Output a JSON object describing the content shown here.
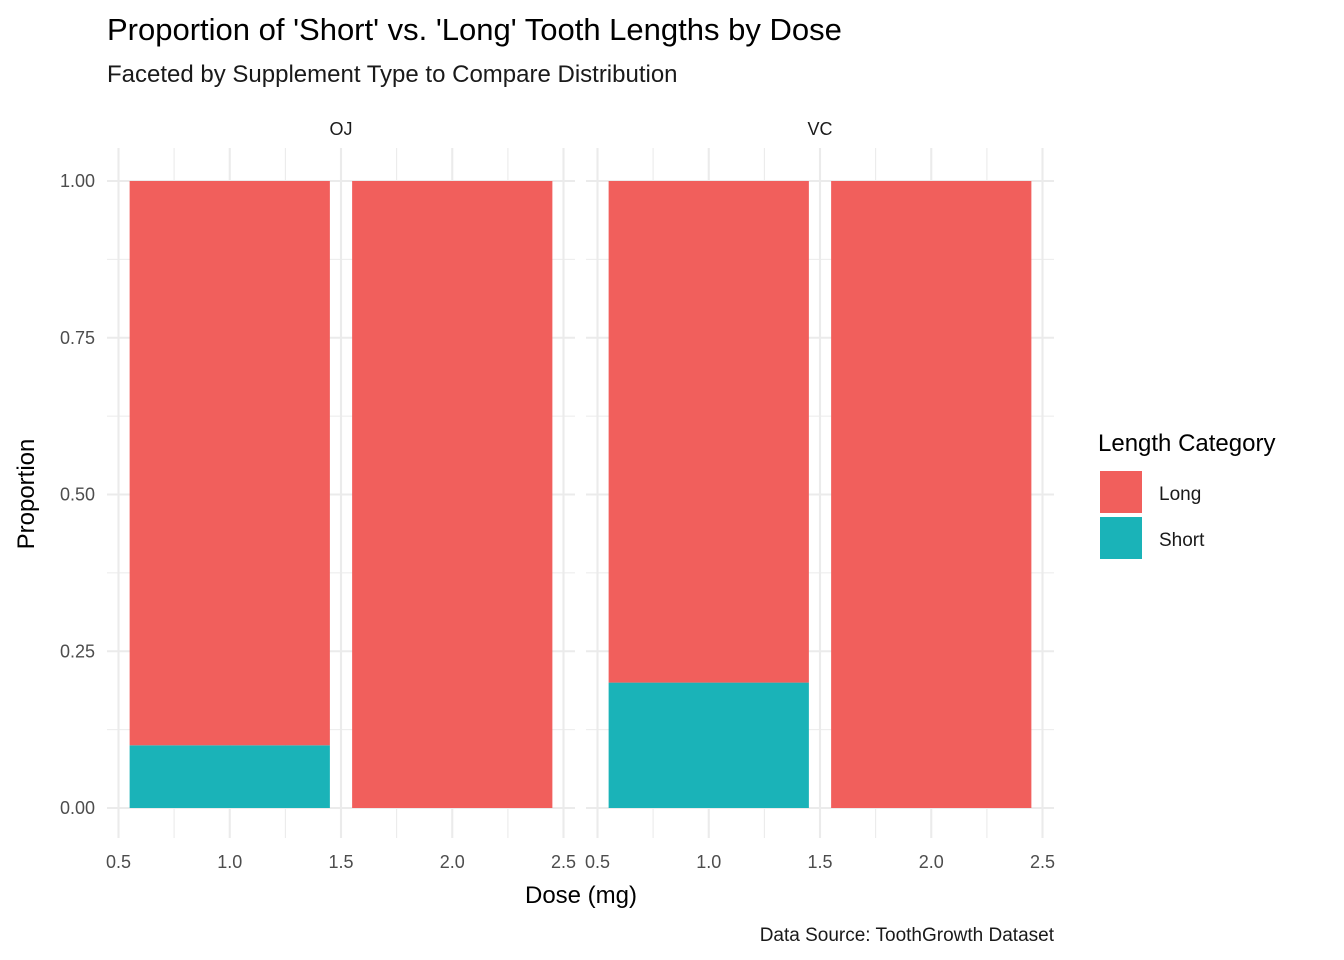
{
  "chart_data": {
    "type": "bar",
    "stacked": true,
    "title": "Proportion of 'Short' vs. 'Long' Tooth Lengths by Dose",
    "subtitle": "Faceted by Supplement Type to Compare Distribution",
    "caption": "Data Source: ToothGrowth Dataset",
    "xlabel": "Dose (mg)",
    "ylabel": "Proportion",
    "xlim": [
      0.5,
      2.5
    ],
    "ylim": [
      0,
      1
    ],
    "x_ticks": [
      "0.5",
      "1.0",
      "1.5",
      "2.0",
      "2.5"
    ],
    "y_ticks": [
      "0.00",
      "0.25",
      "0.50",
      "0.75",
      "1.00"
    ],
    "grid": true,
    "legend": {
      "title": "Length Category",
      "position": "right",
      "entries": [
        {
          "label": "Long",
          "color": "#F8766D"
        },
        {
          "label": "Short",
          "color": "#00BFC4"
        }
      ]
    },
    "facets": [
      {
        "label": "OJ",
        "bars": [
          {
            "x": 1.0,
            "short": 0.1,
            "long": 0.9
          },
          {
            "x": 2.0,
            "short": 0.0,
            "long": 1.0
          }
        ]
      },
      {
        "label": "VC",
        "bars": [
          {
            "x": 1.0,
            "short": 0.2,
            "long": 0.8
          },
          {
            "x": 2.0,
            "short": 0.0,
            "long": 1.0
          }
        ]
      }
    ],
    "colors": {
      "Long": "#F15F5C",
      "Short": "#1AB3B8"
    }
  }
}
